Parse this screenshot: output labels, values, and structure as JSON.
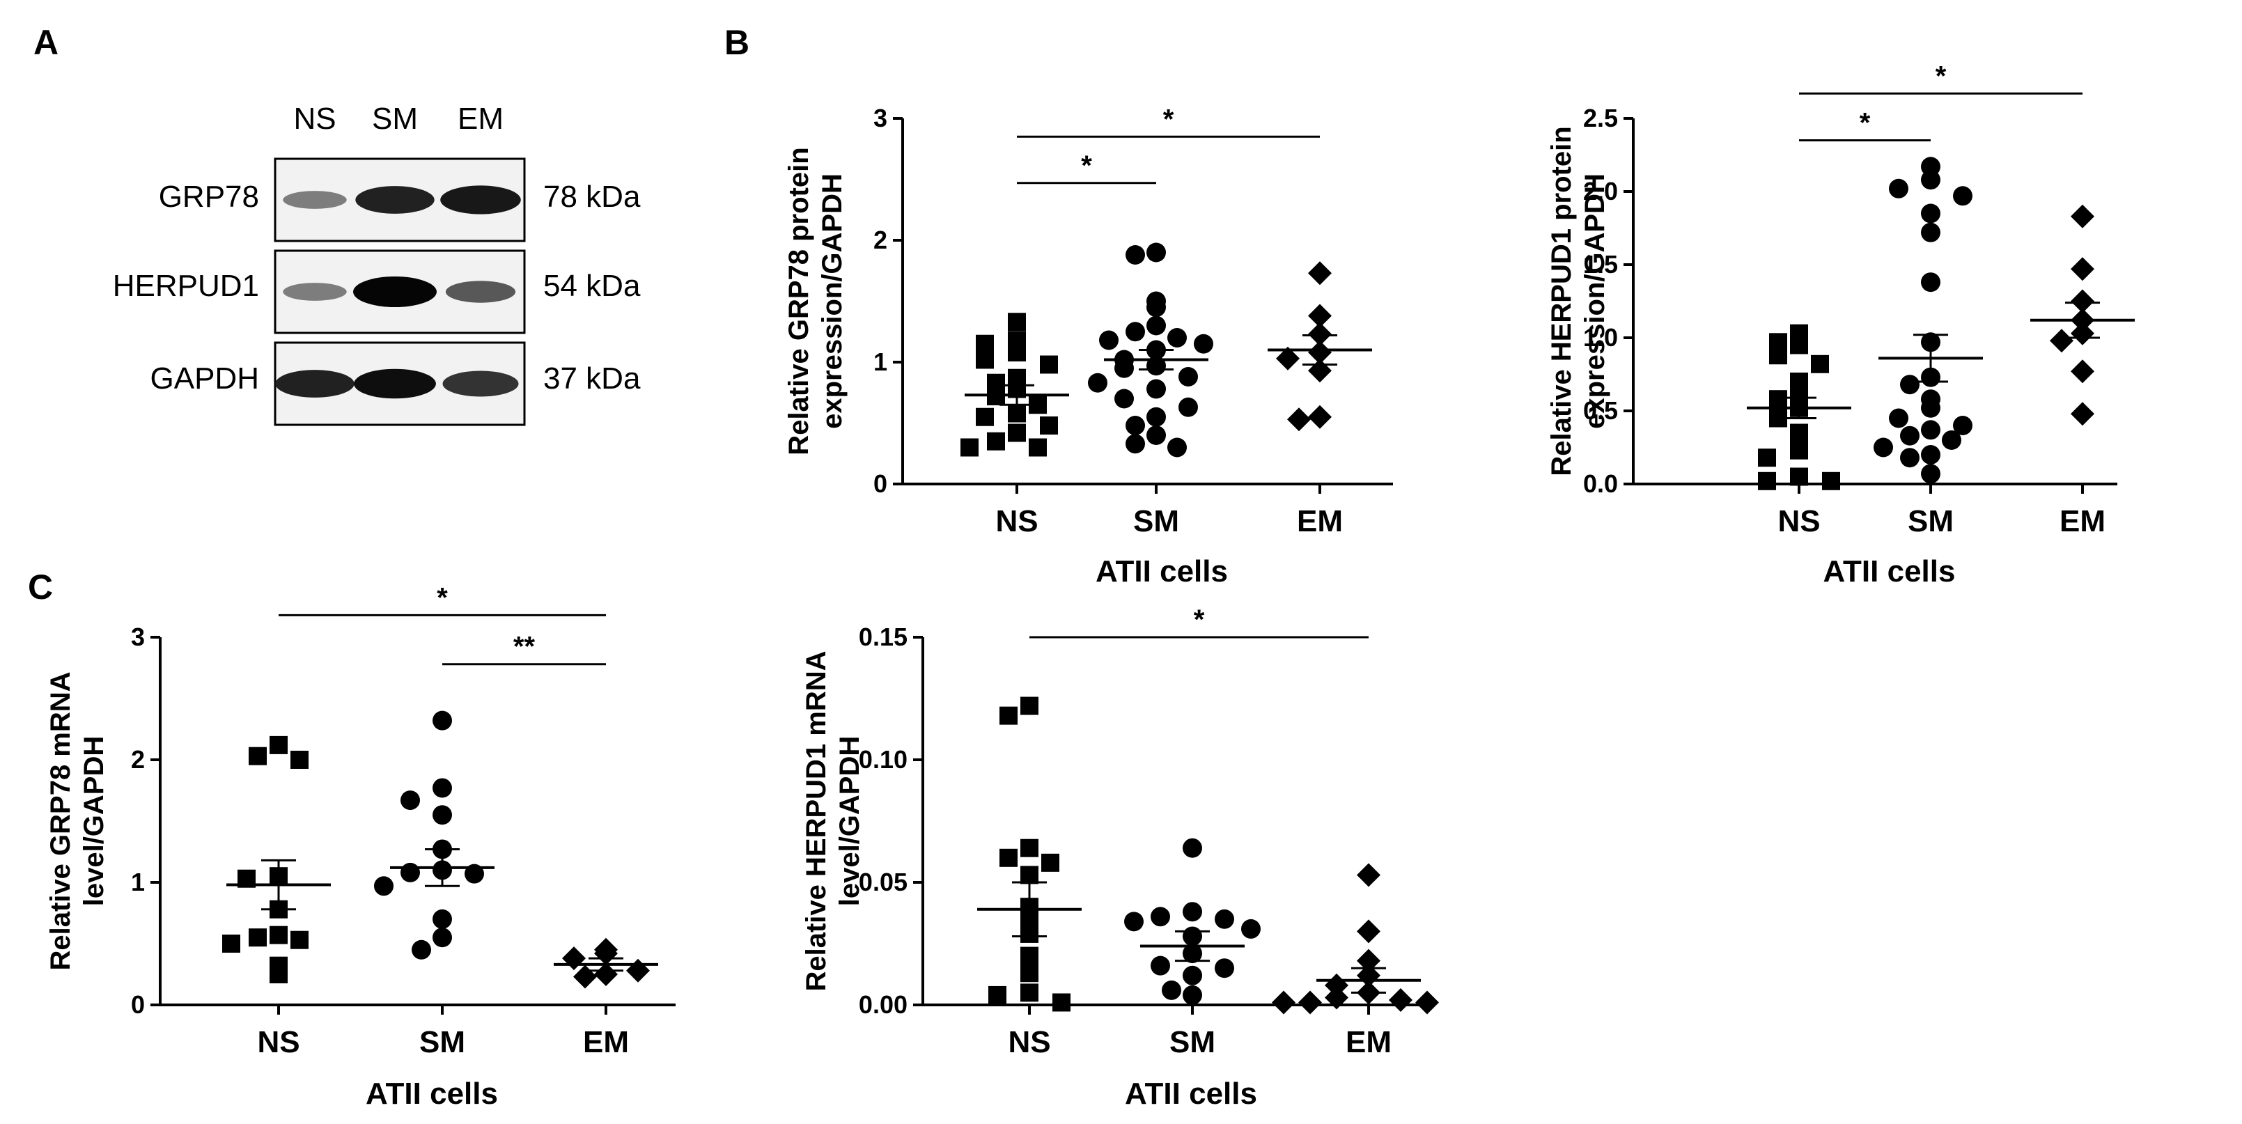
{
  "panels": {
    "a": "A",
    "b": "B",
    "c": "C"
  },
  "blot": {
    "lanes": [
      "NS",
      "SM",
      "EM"
    ],
    "rows": [
      {
        "protein": "GRP78",
        "size": "78 kDa",
        "intensity": [
          0.35,
          0.85,
          0.9
        ]
      },
      {
        "protein": "HERPUD1",
        "size": "54 kDa",
        "intensity": [
          0.35,
          1.0,
          0.55
        ]
      },
      {
        "protein": "GAPDH",
        "size": "37 kDa",
        "intensity": [
          0.85,
          0.95,
          0.75
        ]
      }
    ]
  },
  "chart_data": [
    {
      "id": "b1",
      "type": "scatter",
      "ylabel_lines": [
        "Relative GRP78 protein",
        "expression/GAPDH"
      ],
      "xlabel": "ATII cells",
      "categories": [
        "NS",
        "SM",
        "EM"
      ],
      "ylim": [
        0,
        3
      ],
      "yticks": [
        0,
        1,
        2,
        3
      ],
      "ytick_labels": [
        "0",
        "1",
        "2",
        "3"
      ],
      "marker": "square",
      "series": [
        {
          "name": "NS",
          "mean": 0.73,
          "sem": 0.08,
          "values": [
            1.33,
            1.18,
            1.15,
            1.08,
            1.02,
            0.98,
            0.87,
            0.83,
            0.78,
            0.72,
            0.65,
            0.58,
            0.55,
            0.48,
            0.42,
            0.35,
            0.3,
            0.3
          ]
        },
        {
          "name": "SM",
          "mean": 1.02,
          "sem": 0.08,
          "values": [
            1.9,
            1.88,
            1.5,
            1.45,
            1.3,
            1.25,
            1.2,
            1.18,
            1.15,
            1.1,
            1.02,
            0.97,
            0.95,
            0.88,
            0.83,
            0.78,
            0.7,
            0.63,
            0.55,
            0.48,
            0.4,
            0.33,
            0.3
          ]
        },
        {
          "name": "EM",
          "mean": 1.1,
          "sem": 0.12,
          "values": [
            1.73,
            1.38,
            1.23,
            1.08,
            1.03,
            0.93,
            0.55,
            0.53
          ]
        }
      ],
      "significance": [
        {
          "from": 0,
          "to": 1,
          "label": "*",
          "y": 2.47
        },
        {
          "from": 0,
          "to": 2,
          "label": "*",
          "y": 2.85
        }
      ]
    },
    {
      "id": "b2",
      "type": "scatter",
      "ylabel_lines": [
        "Relative HERPUD1 protein",
        "expression/GAPDH"
      ],
      "xlabel": "ATII cells",
      "categories": [
        "NS",
        "SM",
        "EM"
      ],
      "ylim": [
        0,
        2.5
      ],
      "yticks": [
        0,
        0.5,
        1,
        1.5,
        2,
        2.5
      ],
      "ytick_labels": [
        "0.0",
        "0.5",
        "1.0",
        "1.5",
        "2.0",
        "2.5"
      ],
      "marker": "square",
      "series": [
        {
          "name": "NS",
          "mean": 0.52,
          "sem": 0.07,
          "values": [
            1.03,
            0.97,
            0.95,
            0.88,
            0.82,
            0.7,
            0.62,
            0.58,
            0.52,
            0.45,
            0.35,
            0.23,
            0.18,
            0.05,
            0.02,
            0.02
          ]
        },
        {
          "name": "SM",
          "mean": 0.86,
          "sem": 0.16,
          "values": [
            2.17,
            2.08,
            2.02,
            1.97,
            1.85,
            1.72,
            1.38,
            0.97,
            0.73,
            0.68,
            0.58,
            0.52,
            0.45,
            0.4,
            0.37,
            0.33,
            0.3,
            0.25,
            0.2,
            0.18,
            0.07
          ]
        },
        {
          "name": "EM",
          "mean": 1.12,
          "sem": 0.12,
          "values": [
            1.83,
            1.47,
            1.25,
            1.12,
            1.03,
            0.98,
            0.77,
            0.48
          ]
        }
      ],
      "significance": [
        {
          "from": 0,
          "to": 1,
          "label": "*",
          "y": 2.35
        },
        {
          "from": 0,
          "to": 2,
          "label": "*",
          "y": 2.67
        }
      ]
    },
    {
      "id": "c1",
      "type": "scatter",
      "ylabel_lines": [
        "Relative GRP78 mRNA",
        "level/GAPDH"
      ],
      "xlabel": "ATII cells",
      "categories": [
        "NS",
        "SM",
        "EM"
      ],
      "ylim": [
        0,
        3
      ],
      "yticks": [
        0,
        1,
        2,
        3
      ],
      "ytick_labels": [
        "0",
        "1",
        "2",
        "3"
      ],
      "marker": "square",
      "series": [
        {
          "name": "NS",
          "mean": 0.98,
          "sem": 0.2,
          "values": [
            2.12,
            2.03,
            2.0,
            1.05,
            1.03,
            0.78,
            0.57,
            0.55,
            0.53,
            0.5,
            0.32,
            0.25
          ]
        },
        {
          "name": "SM",
          "mean": 1.12,
          "sem": 0.15,
          "values": [
            2.32,
            1.77,
            1.67,
            1.55,
            1.27,
            1.1,
            1.08,
            1.07,
            0.97,
            0.7,
            0.55,
            0.45
          ]
        },
        {
          "name": "EM",
          "mean": 0.33,
          "sem": 0.05,
          "values": [
            0.45,
            0.42,
            0.38,
            0.28,
            0.25,
            0.23
          ]
        }
      ],
      "significance": [
        {
          "from": 0,
          "to": 2,
          "label": "*",
          "y": 3.18
        },
        {
          "from": 1,
          "to": 2,
          "label": "**",
          "y": 2.78
        }
      ]
    },
    {
      "id": "c2",
      "type": "scatter",
      "ylabel_lines": [
        "Relative HERPUD1 mRNA",
        "level/GAPDH"
      ],
      "xlabel": "ATII cells",
      "categories": [
        "NS",
        "SM",
        "EM"
      ],
      "ylim": [
        0,
        0.15
      ],
      "yticks": [
        0,
        0.05,
        0.1,
        0.15
      ],
      "ytick_labels": [
        "0.00",
        "0.05",
        "0.10",
        "0.15"
      ],
      "marker": "square",
      "series": [
        {
          "name": "NS",
          "mean": 0.039,
          "sem": 0.011,
          "values": [
            0.122,
            0.118,
            0.064,
            0.06,
            0.058,
            0.053,
            0.04,
            0.033,
            0.029,
            0.02,
            0.013,
            0.005,
            0.004,
            0.001
          ]
        },
        {
          "name": "SM",
          "mean": 0.024,
          "sem": 0.006,
          "values": [
            0.064,
            0.038,
            0.036,
            0.035,
            0.034,
            0.031,
            0.028,
            0.021,
            0.016,
            0.015,
            0.012,
            0.006,
            0.004
          ]
        },
        {
          "name": "EM",
          "mean": 0.01,
          "sem": 0.005,
          "values": [
            0.053,
            0.03,
            0.018,
            0.012,
            0.008,
            0.005,
            0.003,
            0.002,
            0.001,
            0.001,
            0.001
          ]
        }
      ],
      "significance": [
        {
          "from": 0,
          "to": 2,
          "label": "*",
          "y": 0.15
        }
      ]
    }
  ]
}
